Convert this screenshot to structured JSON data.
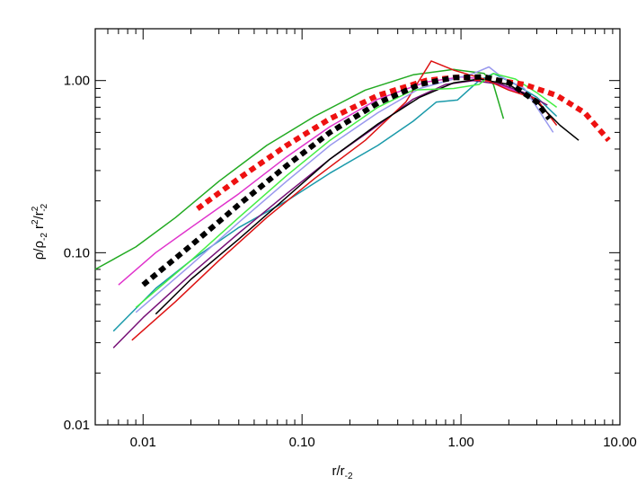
{
  "chart_data": {
    "type": "line",
    "xscale": "log",
    "yscale": "log",
    "xlim": [
      0.005,
      10
    ],
    "ylim": [
      0.01,
      2
    ],
    "grid": false,
    "legend": "none",
    "x_ticks": [
      {
        "value": 0.01,
        "label": "0.01"
      },
      {
        "value": 0.1,
        "label": "0.10"
      },
      {
        "value": 1,
        "label": "1.00"
      },
      {
        "value": 10,
        "label": "10.00"
      }
    ],
    "y_ticks": [
      {
        "value": 0.01,
        "label": "0.01"
      },
      {
        "value": 0.1,
        "label": "0.10"
      },
      {
        "value": 1,
        "label": "1.00"
      }
    ],
    "xlabel": {
      "main": "r/r",
      "sub": "-2"
    },
    "ylabel": {
      "p1": "ρ/ρ",
      "s1": "-2",
      "p2": " r",
      "e1": "2",
      "p3": "/r",
      "e2": "2",
      "s2": "-2"
    },
    "series": [
      {
        "color": "#22aa22",
        "style": "solid",
        "points": [
          [
            0.005,
            0.08
          ],
          [
            0.009,
            0.108
          ],
          [
            0.016,
            0.16
          ],
          [
            0.03,
            0.26
          ],
          [
            0.06,
            0.42
          ],
          [
            0.12,
            0.62
          ],
          [
            0.25,
            0.88
          ],
          [
            0.5,
            1.08
          ],
          [
            0.9,
            1.16
          ],
          [
            1.4,
            1.1
          ],
          [
            1.6,
            0.95
          ],
          [
            1.85,
            0.6
          ]
        ]
      },
      {
        "color": "#e033cc",
        "style": "solid",
        "points": [
          [
            0.007,
            0.065
          ],
          [
            0.012,
            0.1
          ],
          [
            0.02,
            0.14
          ],
          [
            0.04,
            0.22
          ],
          [
            0.08,
            0.36
          ],
          [
            0.15,
            0.54
          ],
          [
            0.3,
            0.78
          ],
          [
            0.6,
            0.98
          ],
          [
            1.0,
            1.05
          ],
          [
            1.4,
            1.02
          ],
          [
            2.0,
            0.9
          ],
          [
            3.0,
            0.78
          ]
        ]
      },
      {
        "color": "#1a9aaa",
        "style": "solid",
        "points": [
          [
            0.0065,
            0.035
          ],
          [
            0.012,
            0.062
          ],
          [
            0.02,
            0.09
          ],
          [
            0.04,
            0.14
          ],
          [
            0.08,
            0.2
          ],
          [
            0.15,
            0.29
          ],
          [
            0.3,
            0.42
          ],
          [
            0.5,
            0.58
          ],
          [
            0.7,
            0.75
          ],
          [
            0.95,
            0.77
          ],
          [
            1.3,
            1.0
          ],
          [
            1.6,
            1.1
          ],
          [
            2.2,
            0.95
          ],
          [
            3.0,
            0.8
          ],
          [
            4.0,
            0.62
          ]
        ]
      },
      {
        "color": "#771177",
        "style": "solid",
        "points": [
          [
            0.0065,
            0.028
          ],
          [
            0.01,
            0.042
          ],
          [
            0.02,
            0.075
          ],
          [
            0.04,
            0.13
          ],
          [
            0.08,
            0.22
          ],
          [
            0.15,
            0.35
          ],
          [
            0.3,
            0.55
          ],
          [
            0.5,
            0.78
          ],
          [
            0.8,
            0.95
          ],
          [
            1.2,
            1.0
          ],
          [
            1.8,
            0.95
          ],
          [
            2.5,
            0.85
          ],
          [
            3.5,
            0.72
          ]
        ]
      },
      {
        "color": "#dd1111",
        "style": "solid",
        "points": [
          [
            0.0085,
            0.031
          ],
          [
            0.016,
            0.052
          ],
          [
            0.03,
            0.09
          ],
          [
            0.06,
            0.16
          ],
          [
            0.12,
            0.27
          ],
          [
            0.25,
            0.45
          ],
          [
            0.45,
            0.75
          ],
          [
            0.65,
            1.3
          ],
          [
            0.9,
            1.15
          ],
          [
            1.4,
            1.02
          ],
          [
            2.0,
            0.88
          ],
          [
            3.0,
            0.78
          ],
          [
            4.0,
            0.55
          ]
        ]
      },
      {
        "color": "#000000",
        "style": "solid",
        "points": [
          [
            0.012,
            0.044
          ],
          [
            0.02,
            0.07
          ],
          [
            0.04,
            0.12
          ],
          [
            0.08,
            0.21
          ],
          [
            0.15,
            0.35
          ],
          [
            0.3,
            0.56
          ],
          [
            0.55,
            0.8
          ],
          [
            0.9,
            0.97
          ],
          [
            1.3,
            1.02
          ],
          [
            2.0,
            0.95
          ],
          [
            3.0,
            0.75
          ],
          [
            4.2,
            0.55
          ],
          [
            5.5,
            0.45
          ]
        ]
      },
      {
        "color": "#9999ee",
        "style": "solid",
        "points": [
          [
            0.009,
            0.045
          ],
          [
            0.02,
            0.085
          ],
          [
            0.04,
            0.15
          ],
          [
            0.08,
            0.26
          ],
          [
            0.15,
            0.42
          ],
          [
            0.3,
            0.65
          ],
          [
            0.55,
            0.9
          ],
          [
            0.9,
            1.02
          ],
          [
            1.2,
            1.1
          ],
          [
            1.5,
            1.2
          ],
          [
            1.8,
            1.05
          ],
          [
            2.5,
            0.9
          ],
          [
            3.0,
            0.7
          ],
          [
            3.8,
            0.5
          ]
        ]
      },
      {
        "color": "#44ee44",
        "style": "solid",
        "points": [
          [
            0.009,
            0.048
          ],
          [
            0.02,
            0.09
          ],
          [
            0.04,
            0.16
          ],
          [
            0.08,
            0.28
          ],
          [
            0.15,
            0.45
          ],
          [
            0.3,
            0.7
          ],
          [
            0.5,
            0.88
          ],
          [
            0.9,
            0.9
          ],
          [
            1.3,
            0.95
          ],
          [
            1.6,
            1.1
          ],
          [
            2.2,
            1.02
          ],
          [
            3.0,
            0.85
          ],
          [
            4.0,
            0.7
          ]
        ]
      },
      {
        "color": "#ee1111",
        "style": "dashed-thick",
        "points": [
          [
            0.022,
            0.18
          ],
          [
            0.04,
            0.27
          ],
          [
            0.08,
            0.42
          ],
          [
            0.15,
            0.6
          ],
          [
            0.3,
            0.82
          ],
          [
            0.6,
            1.0
          ],
          [
            1.0,
            1.05
          ],
          [
            1.5,
            1.02
          ],
          [
            2.5,
            0.95
          ],
          [
            4.0,
            0.82
          ],
          [
            6.0,
            0.65
          ],
          [
            8.5,
            0.45
          ]
        ]
      },
      {
        "color": "#000000",
        "style": "dashed-thick",
        "points": [
          [
            0.01,
            0.065
          ],
          [
            0.02,
            0.11
          ],
          [
            0.04,
            0.19
          ],
          [
            0.08,
            0.32
          ],
          [
            0.15,
            0.5
          ],
          [
            0.3,
            0.74
          ],
          [
            0.55,
            0.95
          ],
          [
            0.9,
            1.04
          ],
          [
            1.4,
            1.05
          ],
          [
            2.0,
            0.97
          ],
          [
            3.0,
            0.75
          ],
          [
            3.6,
            0.6
          ]
        ]
      }
    ]
  }
}
